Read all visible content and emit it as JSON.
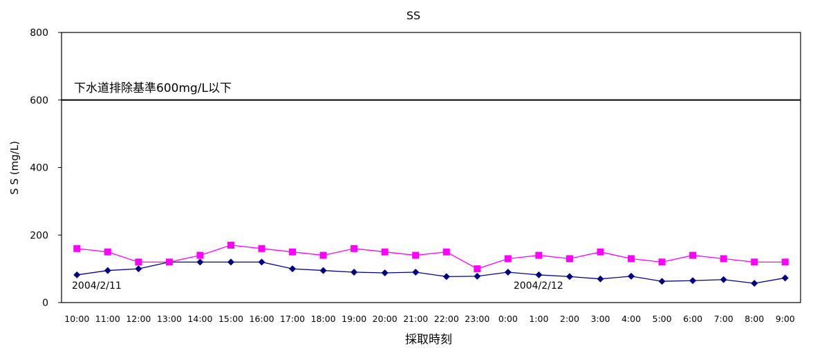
{
  "chart_data": {
    "type": "line",
    "title": "SS",
    "xlabel": "採取時刻",
    "ylabel": "S S (mg/L)",
    "ylim": [
      0,
      800
    ],
    "yticks": [
      "0",
      "200",
      "400",
      "600",
      "800"
    ],
    "categories": [
      "10:00",
      "11:00",
      "12:00",
      "13:00",
      "14:00",
      "15:00",
      "16:00",
      "17:00",
      "18:00",
      "19:00",
      "20:00",
      "21:00",
      "22:00",
      "23:00",
      "0:00",
      "1:00",
      "2:00",
      "3:00",
      "4:00",
      "5:00",
      "6:00",
      "7:00",
      "8:00",
      "9:00"
    ],
    "series": [
      {
        "values": [
          82,
          95,
          100,
          120,
          120,
          120,
          120,
          100,
          95,
          90,
          88,
          90,
          77,
          78,
          90,
          82,
          77,
          70,
          78,
          63,
          65,
          68,
          57,
          73
        ],
        "color": "#000080",
        "marker": "diamond"
      },
      {
        "values": [
          160,
          150,
          120,
          120,
          140,
          170,
          160,
          150,
          140,
          160,
          150,
          140,
          150,
          100,
          130,
          140,
          130,
          150,
          130,
          120,
          140,
          130,
          120,
          120
        ],
        "color": "#ff00ff",
        "marker": "square"
      }
    ],
    "reference_line": {
      "value": 600,
      "label": "下水道排除基準600mg/L以下",
      "color": "#000000"
    },
    "annotations": [
      {
        "text": "2004/2/11",
        "category": "10:00"
      },
      {
        "text": "2004/2/12",
        "category": "0:00"
      }
    ],
    "grid": false,
    "legend": "none"
  }
}
